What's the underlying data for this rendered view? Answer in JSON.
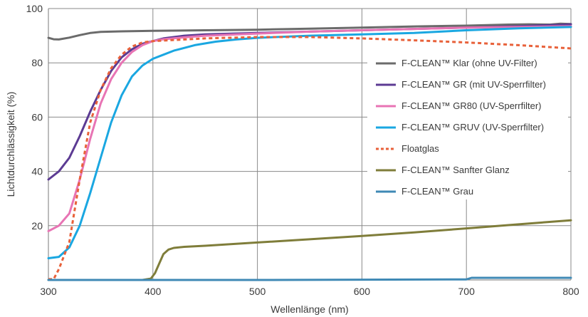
{
  "chart_data": {
    "type": "line",
    "xlabel": "Wellenlänge (nm)",
    "ylabel": "Lichtdurchlässigkeit (%)",
    "xlim": [
      300,
      800
    ],
    "ylim": [
      0,
      100
    ],
    "x_ticks": [
      300,
      400,
      500,
      600,
      700,
      800
    ],
    "y_ticks": [
      20,
      40,
      60,
      80,
      100
    ],
    "grid": true,
    "legend_position": "right",
    "series": [
      {
        "name": "F-CLEAN™ Klar (ohne UV-Filter)",
        "color": "#6b6b6b",
        "dash": false,
        "points": [
          [
            300,
            89.2
          ],
          [
            305,
            88.7
          ],
          [
            310,
            88.6
          ],
          [
            320,
            89.3
          ],
          [
            330,
            90.2
          ],
          [
            340,
            91.0
          ],
          [
            350,
            91.4
          ],
          [
            370,
            91.6
          ],
          [
            400,
            91.8
          ],
          [
            450,
            92.0
          ],
          [
            500,
            92.2
          ],
          [
            550,
            92.6
          ],
          [
            600,
            93.0
          ],
          [
            650,
            93.4
          ],
          [
            700,
            93.7
          ],
          [
            720,
            93.9
          ],
          [
            740,
            94.1
          ],
          [
            760,
            94.2
          ],
          [
            780,
            94.1
          ],
          [
            790,
            94.4
          ],
          [
            800,
            94.3
          ]
        ]
      },
      {
        "name": "F-CLEAN™ GR (mit UV-Sperrfilter)",
        "color": "#5c3b93",
        "dash": false,
        "points": [
          [
            300,
            37
          ],
          [
            310,
            40
          ],
          [
            320,
            45
          ],
          [
            330,
            53
          ],
          [
            340,
            62
          ],
          [
            350,
            70
          ],
          [
            360,
            77
          ],
          [
            370,
            82
          ],
          [
            380,
            85
          ],
          [
            390,
            87
          ],
          [
            400,
            88
          ],
          [
            410,
            89
          ],
          [
            430,
            90
          ],
          [
            450,
            90.5
          ],
          [
            500,
            91
          ],
          [
            550,
            91.5
          ],
          [
            600,
            92
          ],
          [
            650,
            92.5
          ],
          [
            700,
            93
          ],
          [
            750,
            93.5
          ],
          [
            800,
            94.2
          ]
        ]
      },
      {
        "name": "F-CLEAN™ GR80 (UV-Sperrfilter)",
        "color": "#e874b4",
        "dash": false,
        "points": [
          [
            300,
            18
          ],
          [
            310,
            20
          ],
          [
            320,
            24.5
          ],
          [
            330,
            37
          ],
          [
            340,
            52
          ],
          [
            350,
            65
          ],
          [
            360,
            74
          ],
          [
            370,
            80
          ],
          [
            380,
            84
          ],
          [
            390,
            86.5
          ],
          [
            400,
            88
          ],
          [
            410,
            88.7
          ],
          [
            430,
            89.4
          ],
          [
            450,
            90
          ],
          [
            500,
            90.8
          ],
          [
            550,
            91.5
          ],
          [
            600,
            92
          ],
          [
            650,
            92.5
          ],
          [
            700,
            93
          ],
          [
            750,
            93.2
          ],
          [
            800,
            93.5
          ]
        ]
      },
      {
        "name": "F-CLEAN™ GRUV (UV-Sperrfilter)",
        "color": "#1aa7e1",
        "dash": false,
        "points": [
          [
            300,
            8
          ],
          [
            310,
            8.5
          ],
          [
            320,
            12
          ],
          [
            330,
            20
          ],
          [
            340,
            32
          ],
          [
            350,
            45
          ],
          [
            360,
            58
          ],
          [
            370,
            68
          ],
          [
            380,
            75
          ],
          [
            390,
            79
          ],
          [
            400,
            81.5
          ],
          [
            410,
            83
          ],
          [
            420,
            84.5
          ],
          [
            440,
            86.5
          ],
          [
            460,
            87.8
          ],
          [
            480,
            88.6
          ],
          [
            500,
            89.2
          ],
          [
            550,
            90
          ],
          [
            600,
            90.5
          ],
          [
            650,
            91
          ],
          [
            700,
            92
          ],
          [
            750,
            92.7
          ],
          [
            800,
            93.2
          ]
        ]
      },
      {
        "name": "Floatglas",
        "color": "#e8613a",
        "dash": true,
        "points": [
          [
            300,
            0.3
          ],
          [
            305,
            0.3
          ],
          [
            310,
            4
          ],
          [
            320,
            14
          ],
          [
            330,
            37
          ],
          [
            340,
            58
          ],
          [
            350,
            70
          ],
          [
            360,
            78
          ],
          [
            370,
            83
          ],
          [
            380,
            86
          ],
          [
            390,
            87.5
          ],
          [
            400,
            88
          ],
          [
            450,
            89
          ],
          [
            500,
            89.5
          ],
          [
            550,
            89.5
          ],
          [
            600,
            89
          ],
          [
            650,
            88.3
          ],
          [
            700,
            87.5
          ],
          [
            750,
            86.5
          ],
          [
            800,
            85.3
          ]
        ]
      },
      {
        "name": "F-CLEAN™ Sanfter Glanz",
        "color": "#7f7d3a",
        "dash": false,
        "points": [
          [
            300,
            0
          ],
          [
            390,
            0
          ],
          [
            398,
            0.5
          ],
          [
            402,
            2.5
          ],
          [
            406,
            6
          ],
          [
            410,
            9.5
          ],
          [
            415,
            11.2
          ],
          [
            420,
            11.8
          ],
          [
            430,
            12.2
          ],
          [
            450,
            12.6
          ],
          [
            500,
            13.8
          ],
          [
            550,
            15
          ],
          [
            600,
            16.2
          ],
          [
            650,
            17.5
          ],
          [
            700,
            19
          ],
          [
            750,
            20.5
          ],
          [
            800,
            22
          ]
        ]
      },
      {
        "name": "F-CLEAN™ Grau",
        "color": "#3f89b5",
        "dash": false,
        "points": [
          [
            300,
            0
          ],
          [
            400,
            0
          ],
          [
            500,
            0
          ],
          [
            600,
            0.1
          ],
          [
            700,
            0.2
          ],
          [
            705,
            0.8
          ],
          [
            750,
            0.8
          ],
          [
            800,
            0.8
          ]
        ]
      }
    ]
  }
}
